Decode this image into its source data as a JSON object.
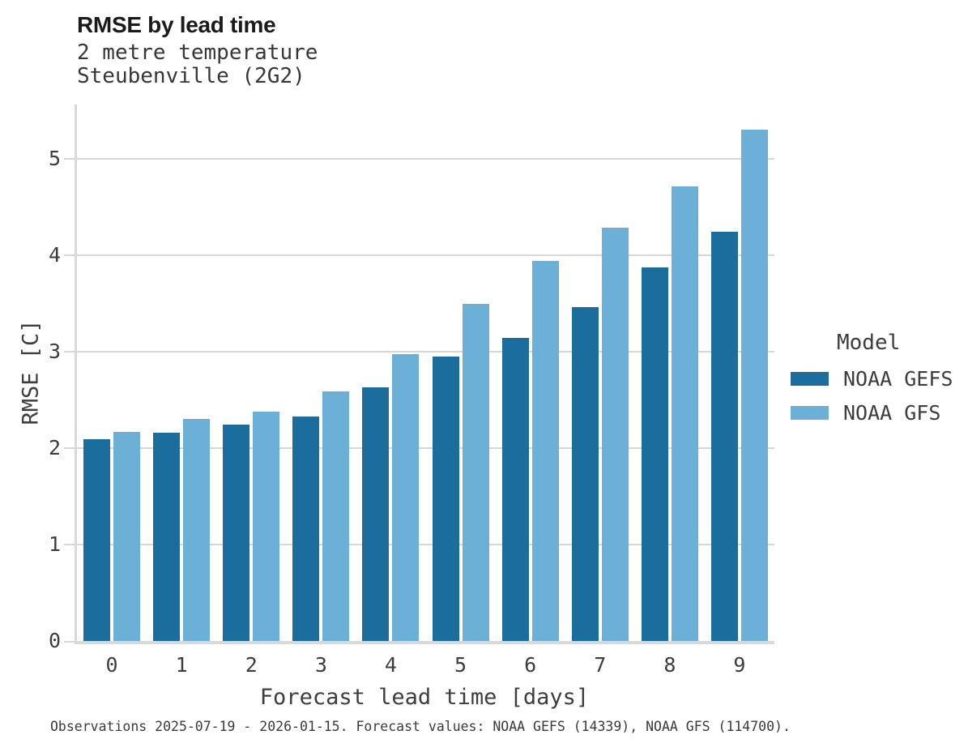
{
  "header": {
    "title": "RMSE by lead time",
    "subtitle1": "2 metre temperature",
    "subtitle2": "Steubenville (2G2)"
  },
  "axes": {
    "x_title": "Forecast lead time [days]",
    "y_title": "RMSE [C]"
  },
  "legend": {
    "title": "Model",
    "items": [
      {
        "label": "NOAA GEFS",
        "color": "#1a6d9d"
      },
      {
        "label": "NOAA GFS",
        "color": "#6cb0d8"
      }
    ]
  },
  "footer": {
    "caption": "Observations 2025-07-19 - 2026-01-15. Forecast values: NOAA GEFS (14339), NOAA GFS (114700)."
  },
  "chart_data": {
    "type": "bar",
    "title": "RMSE by lead time",
    "xlabel": "Forecast lead time [days]",
    "ylabel": "RMSE [C]",
    "categories": [
      "0",
      "1",
      "2",
      "3",
      "4",
      "5",
      "6",
      "7",
      "8",
      "9"
    ],
    "series": [
      {
        "name": "NOAA GEFS",
        "color": "#1a6d9d",
        "values": [
          2.09,
          2.16,
          2.24,
          2.33,
          2.63,
          2.95,
          3.14,
          3.46,
          3.87,
          4.24
        ]
      },
      {
        "name": "NOAA GFS",
        "color": "#6cb0d8",
        "values": [
          2.17,
          2.3,
          2.38,
          2.59,
          2.97,
          3.49,
          3.94,
          4.28,
          4.71,
          5.3
        ]
      }
    ],
    "ylim": [
      0,
      5.56
    ],
    "yticks": [
      0,
      1,
      2,
      3,
      4,
      5
    ],
    "grid": true,
    "legend_position": "right-center"
  }
}
